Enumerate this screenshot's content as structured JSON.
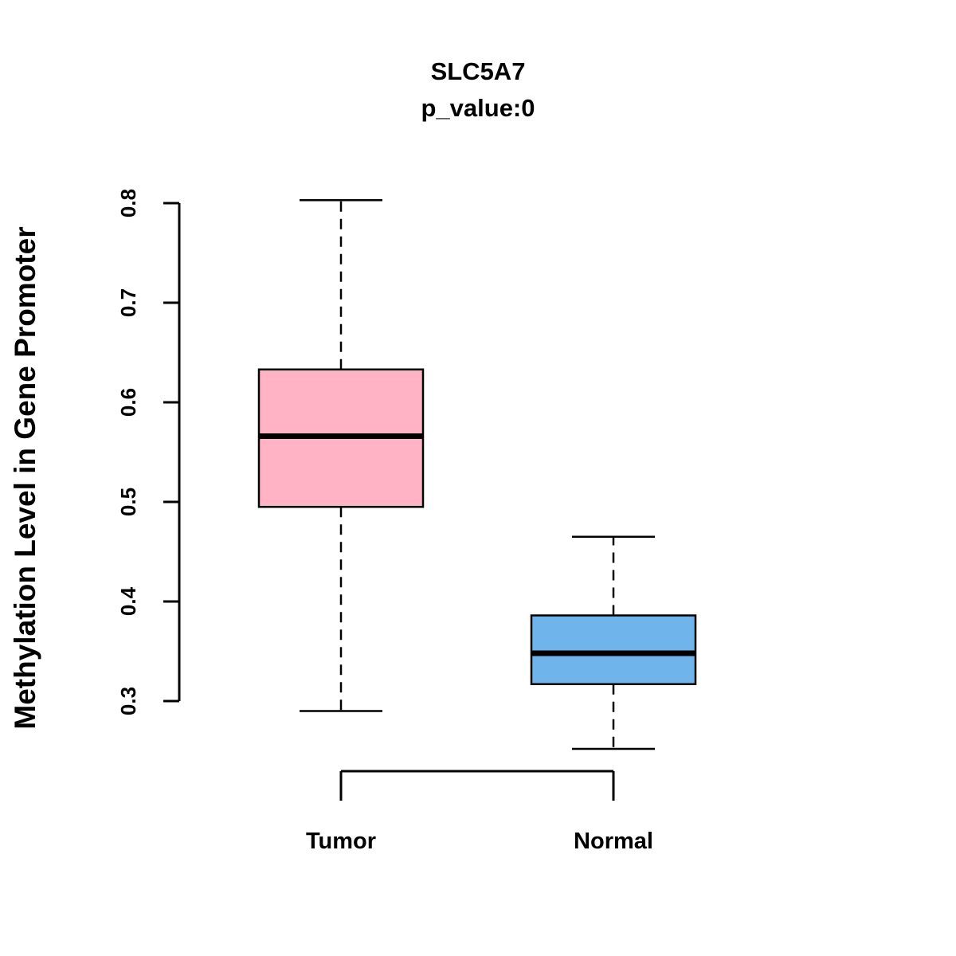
{
  "title": "SLC5A7",
  "subtitle": "p_value:0",
  "ylabel": "Methylation Level in Gene Promoter",
  "chart_data": {
    "type": "boxplot",
    "title": "SLC5A7",
    "subtitle": "p_value:0",
    "ylabel": "Methylation Level in Gene Promoter",
    "xlabel": "",
    "categories": [
      "Tumor",
      "Normal"
    ],
    "series": [
      {
        "name": "Tumor",
        "whisker_low": 0.29,
        "q1": 0.495,
        "median": 0.566,
        "q3": 0.633,
        "whisker_high": 0.803,
        "color": "#FFB3C4"
      },
      {
        "name": "Normal",
        "whisker_low": 0.252,
        "q1": 0.317,
        "median": 0.348,
        "q3": 0.386,
        "whisker_high": 0.465,
        "color": "#6FB4EA"
      }
    ],
    "ylim": [
      0.3,
      0.8
    ],
    "yticks": [
      0.3,
      0.4,
      0.5,
      0.6,
      0.7,
      0.8
    ],
    "grid": false,
    "legend": "none"
  },
  "colors": {
    "stroke": "#000000",
    "background": "#FFFFFF",
    "tumor_fill": "#FFB3C4",
    "normal_fill": "#6FB4EA"
  }
}
